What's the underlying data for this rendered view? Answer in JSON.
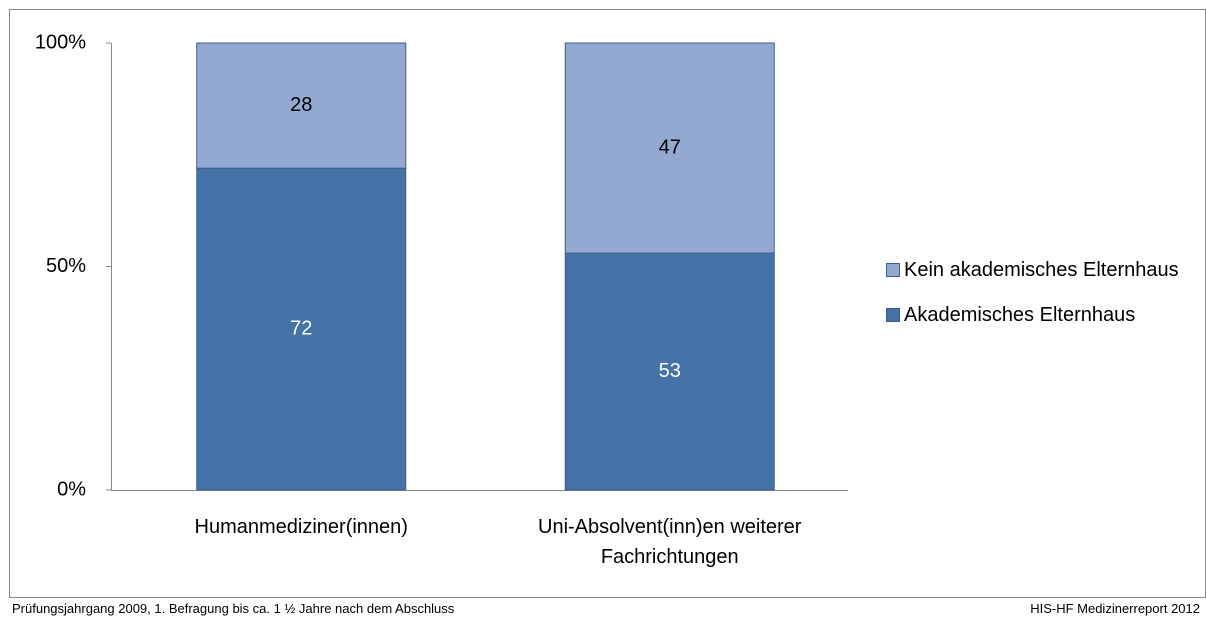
{
  "chart_data": {
    "type": "stacked_bar",
    "categories": [
      "Humanmediziner(innen)",
      "Uni-Absolvent(inn)en weiterer Fachrichtungen"
    ],
    "series": [
      {
        "name": "Akademisches Elternhaus",
        "color": "#4572a7",
        "values": [
          72,
          53
        ]
      },
      {
        "name": "Kein akademisches Elternhaus",
        "color": "#94a9d1",
        "values": [
          28,
          47
        ]
      }
    ],
    "ylim": [
      0,
      100
    ],
    "yticks": [
      {
        "value": 0,
        "label": "0%"
      },
      {
        "value": 50,
        "label": "50%"
      },
      {
        "value": 100,
        "label": "100%"
      }
    ],
    "grid": false,
    "legend": "right",
    "footer_left": "Prüfungsjahrgang 2009, 1. Befragung bis ca. 1 ½ Jahre nach dem Abschluss",
    "footer_right": "HIS-HF Medizinerreport 2012"
  }
}
